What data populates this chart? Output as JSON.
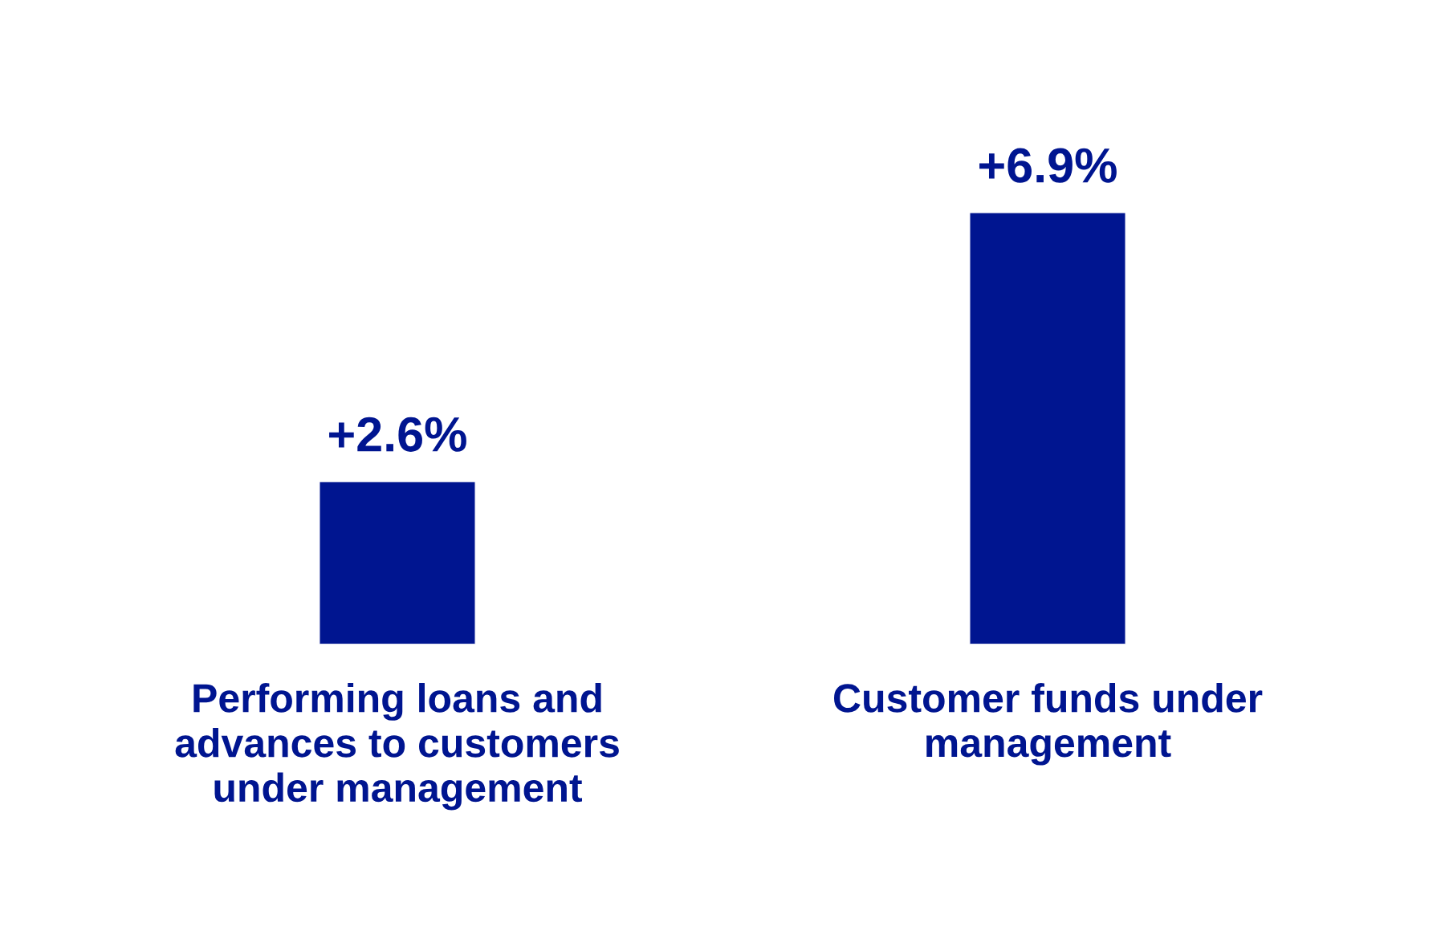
{
  "chart_data": {
    "type": "bar",
    "categories": [
      "Performing loans and advances to customers under management",
      "Customer funds under management"
    ],
    "values": [
      2.6,
      6.9
    ],
    "value_labels": [
      "+2.6%",
      "+6.9%"
    ],
    "color": "#001590"
  }
}
